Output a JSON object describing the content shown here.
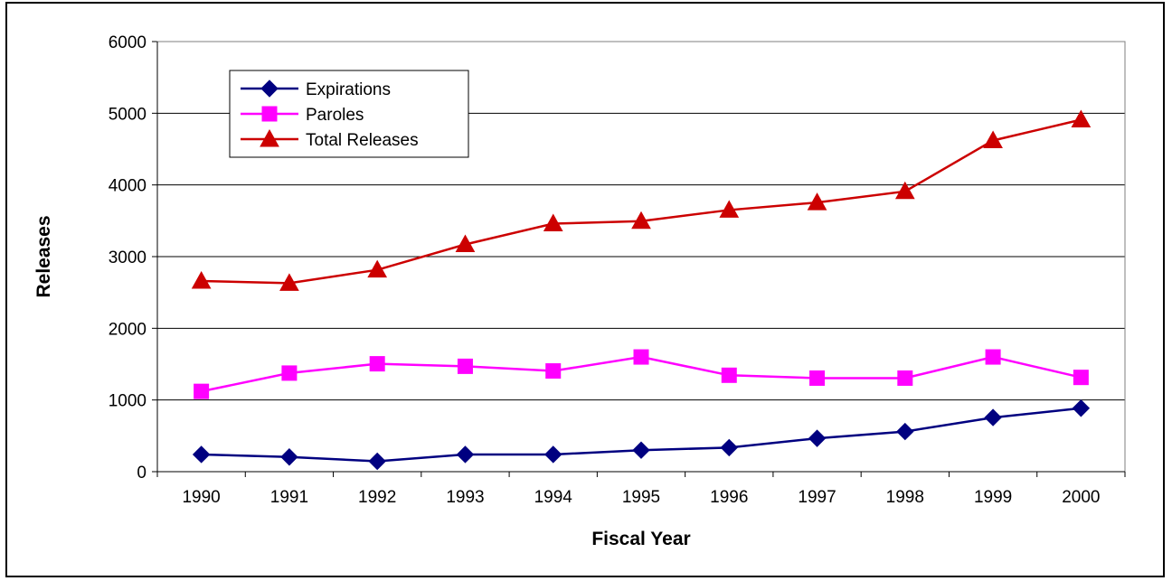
{
  "chart_data": {
    "type": "line",
    "title": "",
    "xlabel": "Fiscal Year",
    "ylabel": "Releases",
    "ylim": [
      0,
      6000
    ],
    "yticks": [
      "0",
      "1000",
      "2000",
      "3000",
      "4000",
      "5000",
      "6000"
    ],
    "categories": [
      "1990",
      "1991",
      "1992",
      "1993",
      "1994",
      "1995",
      "1996",
      "1997",
      "1998",
      "1999",
      "2000"
    ],
    "grid": "horizontal",
    "legend_position": "top-left",
    "series": [
      {
        "name": "Expirations",
        "color": "#000080",
        "marker": "diamond",
        "values": [
          240,
          205,
          145,
          240,
          240,
          300,
          335,
          465,
          560,
          755,
          885
        ]
      },
      {
        "name": "Paroles",
        "color": "#ff00ff",
        "marker": "square",
        "values": [
          1120,
          1375,
          1505,
          1470,
          1405,
          1600,
          1345,
          1305,
          1305,
          1600,
          1315
        ]
      },
      {
        "name": "Total Releases",
        "color": "#cc0000",
        "marker": "triangle",
        "values": [
          2660,
          2630,
          2815,
          3170,
          3460,
          3495,
          3650,
          3755,
          3910,
          4620,
          4910
        ]
      }
    ]
  }
}
